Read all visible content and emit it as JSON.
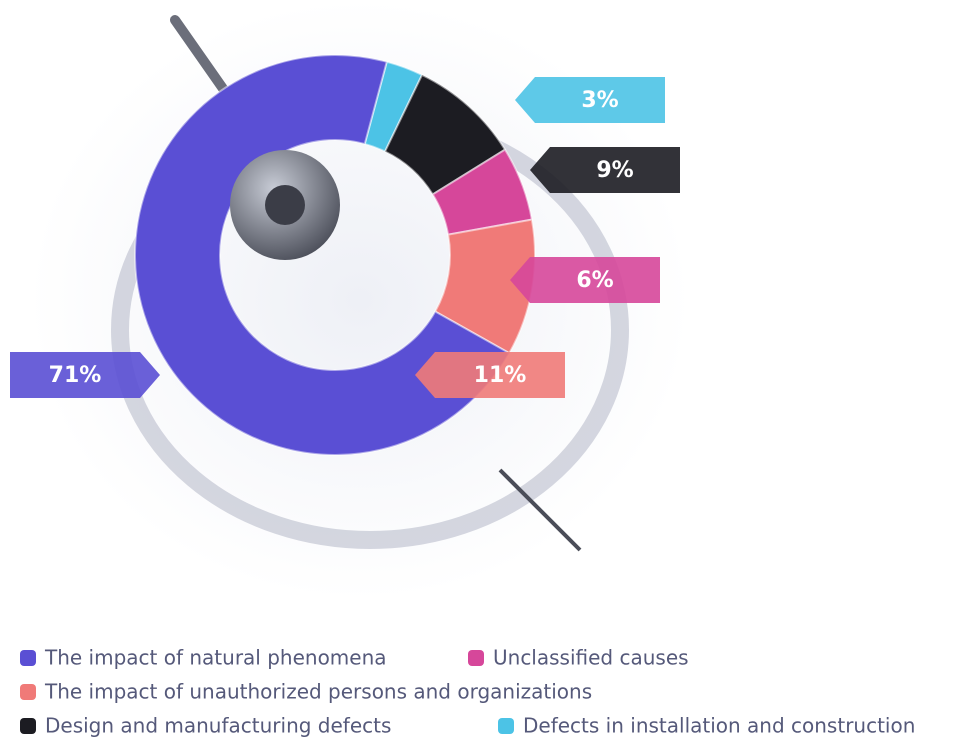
{
  "chart_data": {
    "type": "pie",
    "donut": true,
    "categories": [
      "Defects in installation and construction",
      "Design and manufacturing defects",
      "Unclassified causes",
      "The impact of unauthorized persons and organizations",
      "The impact of natural phenomena"
    ],
    "values": [
      3,
      9,
      6,
      11,
      71
    ],
    "value_labels": [
      "3%",
      "9%",
      "6%",
      "11%",
      "71%"
    ],
    "colors": [
      "#4cc3e6",
      "#1c1c22",
      "#d6479a",
      "#f07a78",
      "#5a4fd4"
    ]
  }
}
